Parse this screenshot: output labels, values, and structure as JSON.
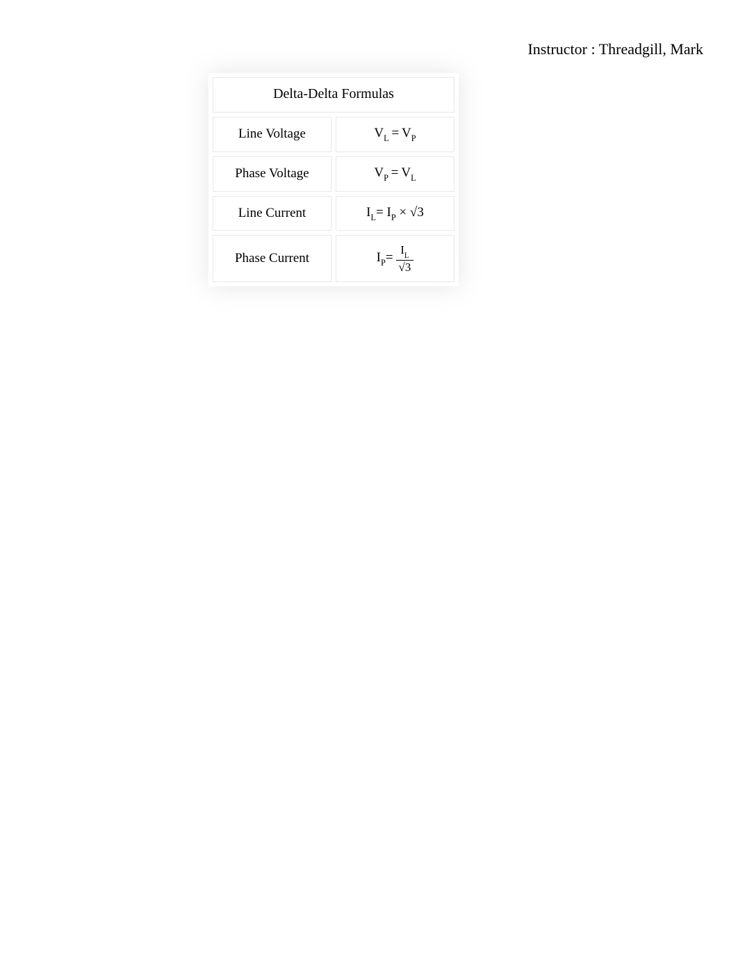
{
  "header": {
    "instructor_label": "Instructor : ",
    "instructor_name": "Threadgill, Mark"
  },
  "table": {
    "title": "Delta-Delta Formulas",
    "title_fontsize": 20,
    "cell_fontsize": 19,
    "border_color": "#e8e8e8",
    "background_color": "#ffffff",
    "shadow_color": "rgba(0,0,0,0.10)",
    "rows": [
      {
        "label": "Line Voltage",
        "formula_kind": "equal",
        "lhs_var": "V",
        "lhs_sub": "L",
        "rhs_var": "V",
        "rhs_sub": "P"
      },
      {
        "label": "Phase Voltage",
        "formula_kind": "equal",
        "lhs_var": "V",
        "lhs_sub": "P",
        "rhs_var": "V",
        "rhs_sub": "L"
      },
      {
        "label": "Line Current",
        "formula_kind": "times_sqrt",
        "lhs_var": "I",
        "lhs_sub": "L",
        "rhs_var": "I",
        "rhs_sub": "P",
        "radicand": "3"
      },
      {
        "label": "Phase Current",
        "formula_kind": "div_sqrt",
        "lhs_var": "I",
        "lhs_sub": "P",
        "num_var": "I",
        "num_sub": "L",
        "radicand": "3"
      }
    ]
  }
}
